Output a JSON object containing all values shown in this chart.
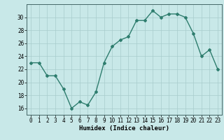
{
  "x": [
    0,
    1,
    2,
    3,
    4,
    5,
    6,
    7,
    8,
    9,
    10,
    11,
    12,
    13,
    14,
    15,
    16,
    17,
    18,
    19,
    20,
    21,
    22,
    23
  ],
  "y": [
    23,
    23,
    21,
    21,
    19,
    16,
    17,
    16.5,
    18.5,
    23,
    25.5,
    26.5,
    27,
    29.5,
    29.5,
    31,
    30,
    30.5,
    30.5,
    30,
    27.5,
    24,
    25,
    22
  ],
  "line_color": "#2e7d6e",
  "marker": "D",
  "marker_size": 2.0,
  "bg_color": "#c8e8e8",
  "grid_color": "#a8cccc",
  "xlabel": "Humidex (Indice chaleur)",
  "ylim": [
    15,
    32
  ],
  "xlim": [
    -0.5,
    23.5
  ],
  "yticks": [
    16,
    18,
    20,
    22,
    24,
    26,
    28,
    30
  ],
  "xticks": [
    0,
    1,
    2,
    3,
    4,
    5,
    6,
    7,
    8,
    9,
    10,
    11,
    12,
    13,
    14,
    15,
    16,
    17,
    18,
    19,
    20,
    21,
    22,
    23
  ],
  "xlabel_fontsize": 6.5,
  "tick_fontsize": 5.5,
  "linewidth": 1.0
}
